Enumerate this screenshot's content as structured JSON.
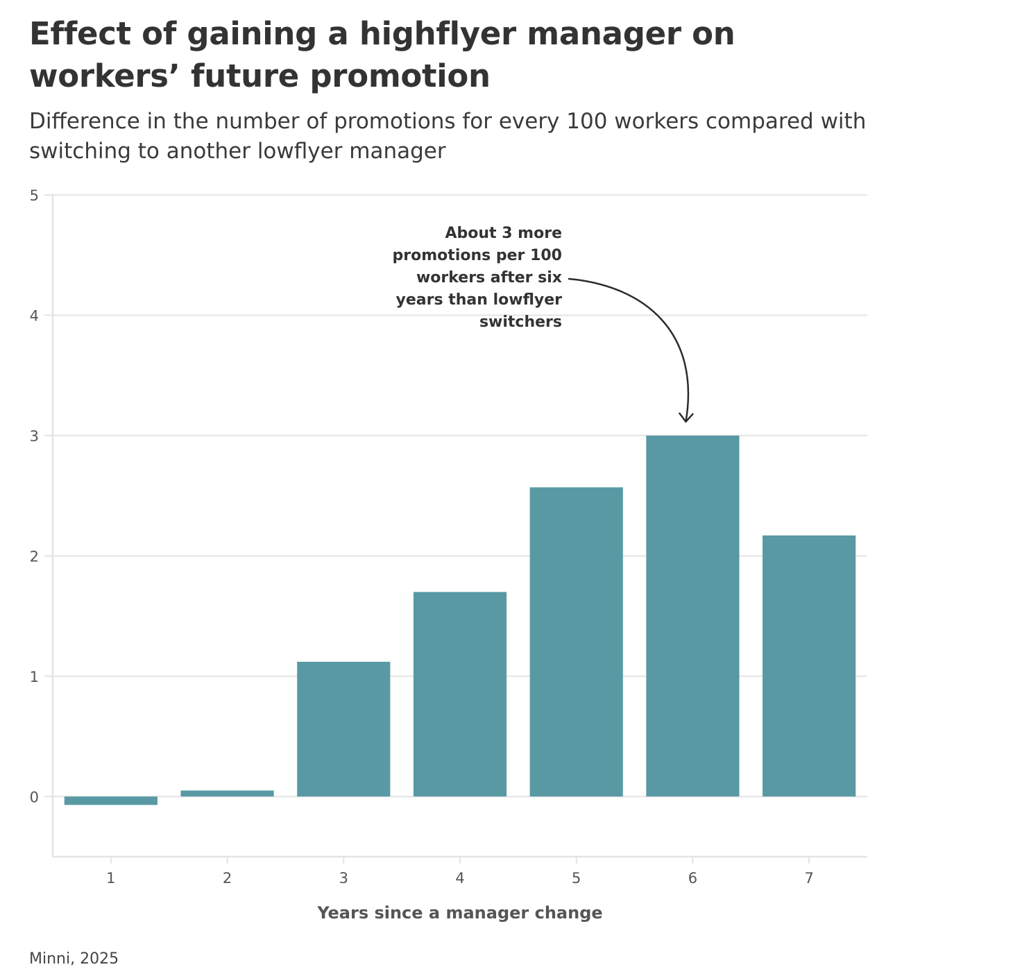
{
  "chart_data": {
    "type": "bar",
    "title": "Effect of gaining a highflyer manager on workers’ future promotion",
    "subtitle": "Difference in the number of promotions for every 100 workers compared with switching to another lowflyer manager",
    "xlabel": "Years since a manager change",
    "ylabel": "",
    "categories": [
      "1",
      "2",
      "3",
      "4",
      "5",
      "6",
      "7"
    ],
    "values": [
      -0.07,
      0.05,
      1.12,
      1.7,
      2.57,
      3.0,
      2.17
    ],
    "ylim": [
      -0.5,
      5
    ],
    "yticks": [
      "0",
      "1",
      "2",
      "3",
      "4",
      "5"
    ],
    "grid": true,
    "bar_color": "#5899a4",
    "annotation": {
      "category": "6",
      "lines": [
        "About 3 more",
        "promotions per 100",
        "workers after six",
        "years than lowflyer",
        "switchers"
      ]
    },
    "source": "Minni, 2025"
  }
}
